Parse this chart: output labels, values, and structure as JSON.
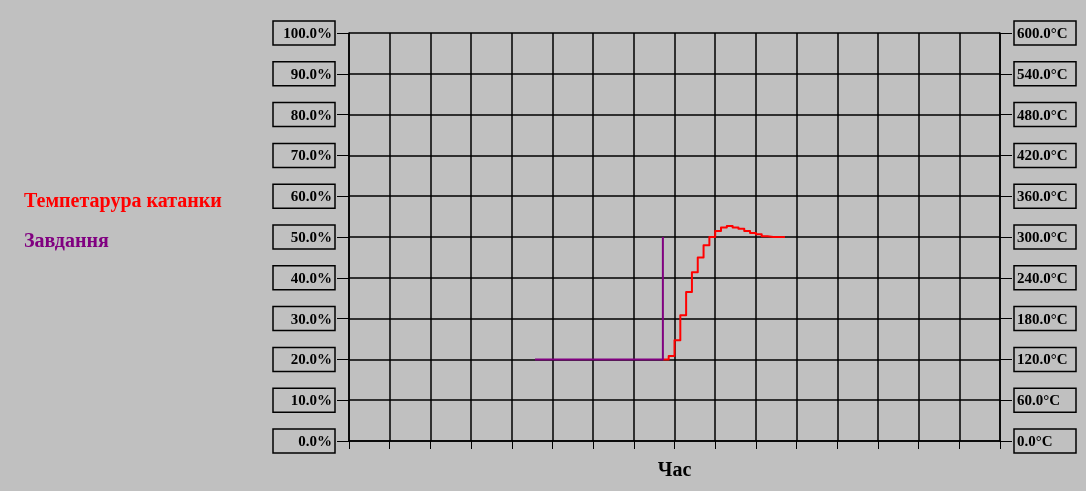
{
  "chart_data": {
    "type": "step",
    "xlabel": "Час",
    "categories": [
      null,
      null,
      null,
      null,
      null,
      null,
      null,
      null,
      null,
      null,
      null,
      null,
      null,
      null,
      null,
      null,
      null,
      null,
      null,
      null,
      null,
      null,
      null,
      null,
      null,
      null,
      null,
      null,
      null,
      null,
      null,
      null,
      null,
      null,
      null,
      null,
      null,
      null,
      null,
      null,
      null,
      null,
      null,
      null,
      null,
      null,
      null,
      null,
      null,
      null,
      null,
      null,
      null,
      null,
      null,
      null,
      null,
      null,
      null,
      null,
      null,
      null,
      null,
      null,
      null,
      null,
      null,
      null,
      null,
      null,
      null,
      null,
      null,
      null,
      null,
      null,
      null,
      null,
      null,
      null,
      null,
      null,
      null,
      null,
      null,
      null,
      null,
      null,
      null,
      null,
      null,
      null,
      null,
      null,
      null,
      null,
      null,
      null,
      null,
      null,
      null,
      null,
      null,
      null,
      null,
      null,
      null,
      null,
      null,
      null,
      null,
      null,
      null
    ],
    "series": [
      {
        "name": "Темпетарура катанки",
        "color": "#ff0000",
        "axis": "y2",
        "values": [
          null,
          null,
          null,
          null,
          null,
          null,
          null,
          null,
          null,
          null,
          null,
          null,
          null,
          null,
          null,
          null,
          null,
          null,
          null,
          null,
          null,
          null,
          null,
          null,
          null,
          null,
          null,
          null,
          null,
          null,
          null,
          null,
          null,
          null,
          null,
          null,
          null,
          null,
          null,
          null,
          null,
          null,
          null,
          null,
          null,
          null,
          null,
          null,
          null,
          null,
          null,
          null,
          null,
          null,
          120,
          125,
          148,
          185,
          219,
          248,
          270,
          288,
          300,
          309,
          314,
          316,
          314,
          312,
          309,
          306,
          304,
          301,
          300,
          300,
          300,
          300,
          null,
          null,
          null,
          null,
          null,
          null,
          null,
          null,
          null,
          null,
          null,
          null,
          null,
          null,
          null,
          null,
          null,
          null,
          null,
          null,
          null,
          null,
          null,
          null,
          null,
          null,
          null,
          null,
          null,
          null,
          null,
          null,
          null,
          null,
          null,
          null,
          null
        ]
      },
      {
        "name": "Завдання",
        "color": "#800080",
        "axis": "y2",
        "values": [
          null,
          null,
          null,
          null,
          null,
          null,
          null,
          null,
          null,
          null,
          null,
          null,
          null,
          null,
          null,
          null,
          null,
          null,
          null,
          null,
          null,
          null,
          null,
          null,
          null,
          null,
          null,
          null,
          null,
          null,
          null,
          null,
          120,
          120,
          120,
          120,
          120,
          120,
          120,
          120,
          120,
          120,
          120,
          120,
          120,
          120,
          120,
          120,
          120,
          120,
          120,
          120,
          120,
          120,
          300,
          null,
          null,
          null,
          null,
          null,
          null,
          null,
          null,
          null,
          null,
          null,
          null,
          null,
          null,
          null,
          null,
          null,
          null,
          null,
          null,
          null,
          null,
          null,
          null,
          null,
          null,
          null,
          null,
          null,
          null,
          null,
          null,
          null,
          null,
          null,
          null,
          null,
          null,
          null,
          null,
          null,
          null,
          null,
          null,
          null,
          null,
          null,
          null,
          null,
          null,
          null,
          null,
          null,
          null,
          null,
          null,
          null,
          null
        ]
      }
    ],
    "ylim": [
      0,
      100
    ],
    "yticks": [
      {
        "value": 0,
        "label": "0.0%"
      },
      {
        "value": 10,
        "label": "10.0%"
      },
      {
        "value": 20,
        "label": "20.0%"
      },
      {
        "value": 30,
        "label": "30.0%"
      },
      {
        "value": 40,
        "label": "40.0%"
      },
      {
        "value": 50,
        "label": "50.0%"
      },
      {
        "value": 60,
        "label": "60.0%"
      },
      {
        "value": 70,
        "label": "70.0%"
      },
      {
        "value": 80,
        "label": "80.0%"
      },
      {
        "value": 90,
        "label": "90.0%"
      },
      {
        "value": 100,
        "label": "100.0%"
      }
    ],
    "y2lim": [
      0,
      600
    ],
    "y2ticks": [
      {
        "value": 0,
        "label": "0.0°C"
      },
      {
        "value": 60,
        "label": "60.0°C"
      },
      {
        "value": 120,
        "label": "120.0°C"
      },
      {
        "value": 180,
        "label": "180.0°C"
      },
      {
        "value": 240,
        "label": "240.0°C"
      },
      {
        "value": 300,
        "label": "300.0°C"
      },
      {
        "value": 360,
        "label": "360.0°C"
      },
      {
        "value": 420,
        "label": "420.0°C"
      },
      {
        "value": 480,
        "label": "480.0°C"
      },
      {
        "value": 540,
        "label": "540.0°C"
      },
      {
        "value": 600,
        "label": "600.0°C"
      }
    ],
    "grid": true,
    "legend": "left",
    "marker": "none",
    "line_style": "solid"
  }
}
